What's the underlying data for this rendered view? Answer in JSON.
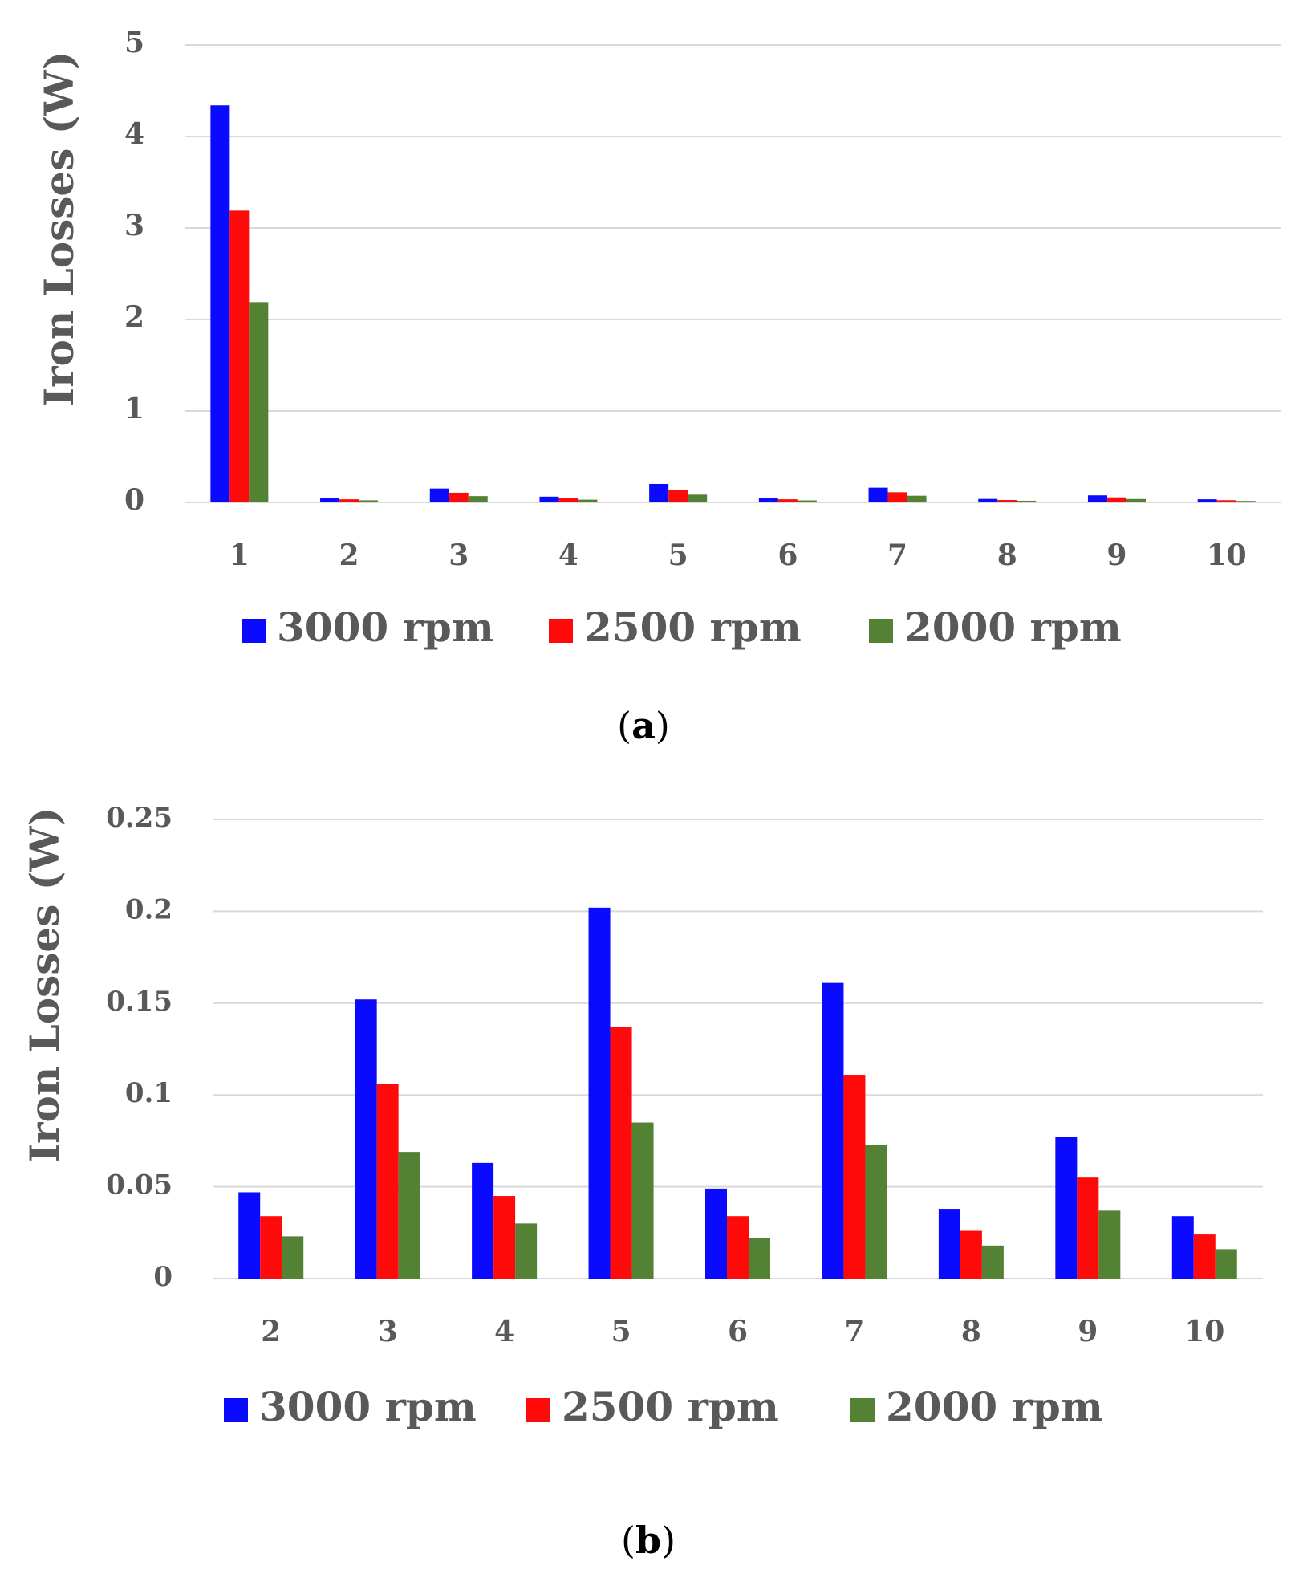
{
  "colors": {
    "series_3000": "#0a0aff",
    "series_2500": "#ff0a0a",
    "series_2000": "#548235"
  },
  "chart_data": [
    {
      "type": "bar",
      "caption_open": "(",
      "caption_letter": "a",
      "caption_close": ")",
      "ylabel": "Iron Losses (W)",
      "xlabel": "",
      "ylim": [
        0,
        5
      ],
      "yticks": [
        "0",
        "1",
        "2",
        "3",
        "4",
        "5"
      ],
      "ytick_values": [
        0,
        1,
        2,
        3,
        4,
        5
      ],
      "grid": true,
      "legend_position": "bottom",
      "categories": [
        "1",
        "2",
        "3",
        "4",
        "5",
        "6",
        "7",
        "8",
        "9",
        "10"
      ],
      "series": [
        {
          "name": "3000 rpm",
          "values": [
            4.34,
            0.047,
            0.152,
            0.063,
            0.202,
            0.049,
            0.161,
            0.038,
            0.077,
            0.034
          ]
        },
        {
          "name": "2500 rpm",
          "values": [
            3.19,
            0.034,
            0.106,
            0.045,
            0.137,
            0.034,
            0.111,
            0.026,
            0.055,
            0.024
          ]
        },
        {
          "name": "2000 rpm",
          "values": [
            2.19,
            0.023,
            0.069,
            0.03,
            0.085,
            0.022,
            0.073,
            0.018,
            0.037,
            0.016
          ]
        }
      ]
    },
    {
      "type": "bar",
      "caption_open": "(",
      "caption_letter": "b",
      "caption_close": ")",
      "ylabel": "Iron Losses (W)",
      "xlabel": "",
      "ylim": [
        0,
        0.25
      ],
      "yticks": [
        "0",
        "0.05",
        "0.1",
        "0.15",
        "0.2",
        "0.25"
      ],
      "ytick_values": [
        0,
        0.05,
        0.1,
        0.15,
        0.2,
        0.25
      ],
      "grid": true,
      "legend_position": "bottom",
      "categories": [
        "2",
        "3",
        "4",
        "5",
        "6",
        "7",
        "8",
        "9",
        "10"
      ],
      "series": [
        {
          "name": "3000 rpm",
          "values": [
            0.047,
            0.152,
            0.063,
            0.202,
            0.049,
            0.161,
            0.038,
            0.077,
            0.034
          ]
        },
        {
          "name": "2500 rpm",
          "values": [
            0.034,
            0.106,
            0.045,
            0.137,
            0.034,
            0.111,
            0.026,
            0.055,
            0.024
          ]
        },
        {
          "name": "2000 rpm",
          "values": [
            0.023,
            0.069,
            0.03,
            0.085,
            0.022,
            0.073,
            0.018,
            0.037,
            0.016
          ]
        }
      ]
    }
  ]
}
